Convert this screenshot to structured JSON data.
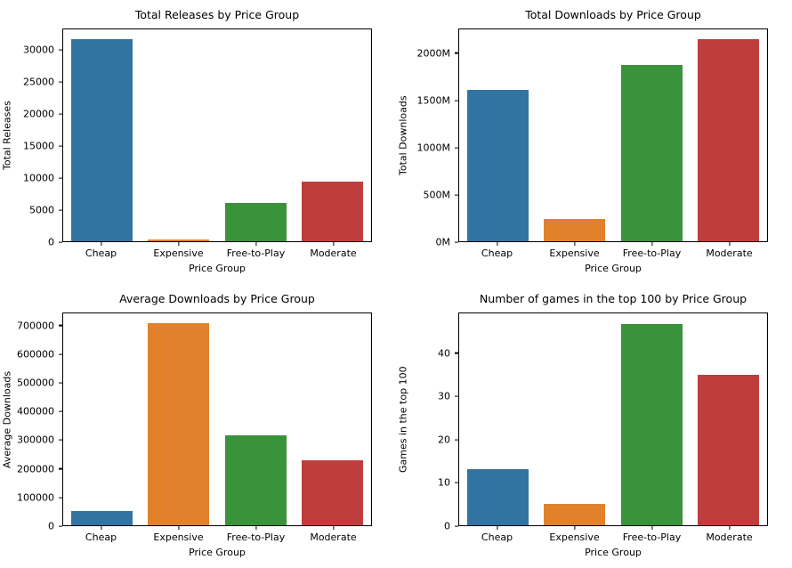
{
  "figure": {
    "background": "#ffffff",
    "text_color": "#000000",
    "layout": "2x2-grid"
  },
  "palette": [
    "#3274a1",
    "#e1812c",
    "#3a923a",
    "#c03d3e"
  ],
  "chart_data": [
    {
      "type": "bar",
      "title": "Total Releases by Price Group",
      "xlabel": "Price Group",
      "ylabel": "Total Releases",
      "categories": [
        "Cheap",
        "Expensive",
        "Free-to-Play",
        "Moderate"
      ],
      "values": [
        31800,
        300,
        6000,
        9400
      ],
      "yticks": [
        0,
        5000,
        10000,
        15000,
        20000,
        25000,
        30000
      ],
      "ytick_labels": [
        "0",
        "5000",
        "10000",
        "15000",
        "20000",
        "25000",
        "30000"
      ],
      "ylim": [
        0,
        33400
      ],
      "grid": false,
      "legend": "none"
    },
    {
      "type": "bar",
      "title": "Total Downloads by Price Group",
      "xlabel": "Price Group",
      "ylabel": "Total Downloads",
      "categories": [
        "Cheap",
        "Expensive",
        "Free-to-Play",
        "Moderate"
      ],
      "values": [
        1610,
        240,
        1885,
        2155
      ],
      "value_unit": "M",
      "yticks": [
        0,
        500,
        1000,
        1500,
        2000
      ],
      "ytick_labels": [
        "0M",
        "500M",
        "1000M",
        "1500M",
        "2000M"
      ],
      "ylim": [
        0,
        2260
      ],
      "grid": false,
      "legend": "none"
    },
    {
      "type": "bar",
      "title": "Average Downloads by Price Group",
      "xlabel": "Price Group",
      "ylabel": "Average Downloads",
      "categories": [
        "Cheap",
        "Expensive",
        "Free-to-Play",
        "Moderate"
      ],
      "values": [
        50000,
        710000,
        315000,
        228000
      ],
      "yticks": [
        0,
        100000,
        200000,
        300000,
        400000,
        500000,
        600000,
        700000
      ],
      "ytick_labels": [
        "0",
        "100000",
        "200000",
        "300000",
        "400000",
        "500000",
        "600000",
        "700000"
      ],
      "ylim": [
        0,
        745000
      ],
      "grid": false,
      "legend": "none"
    },
    {
      "type": "bar",
      "title": "Number of games in the top 100 by Price Group",
      "xlabel": "Price Group",
      "ylabel": "Games in the top 100",
      "categories": [
        "Cheap",
        "Expensive",
        "Free-to-Play",
        "Moderate"
      ],
      "values": [
        13,
        5,
        47,
        35
      ],
      "yticks": [
        0,
        10,
        20,
        30,
        40
      ],
      "ytick_labels": [
        "0",
        "10",
        "20",
        "30",
        "40"
      ],
      "ylim": [
        0,
        49.4
      ],
      "grid": false,
      "legend": "none"
    }
  ]
}
